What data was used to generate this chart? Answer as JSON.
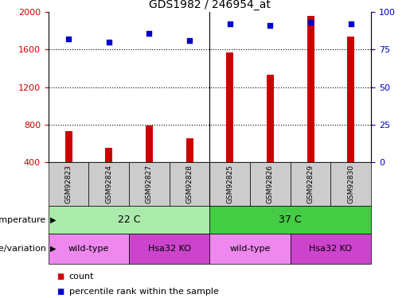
{
  "title": "GDS1982 / 246954_at",
  "samples": [
    "GSM92823",
    "GSM92824",
    "GSM92827",
    "GSM92828",
    "GSM92825",
    "GSM92826",
    "GSM92829",
    "GSM92830"
  ],
  "counts": [
    730,
    555,
    795,
    660,
    1570,
    1330,
    1960,
    1740
  ],
  "percentiles": [
    82,
    80,
    86,
    81,
    92,
    91,
    93,
    92
  ],
  "ylim_left": [
    400,
    2000
  ],
  "ylim_right": [
    0,
    100
  ],
  "yticks_left": [
    400,
    800,
    1200,
    1600,
    2000
  ],
  "yticks_right": [
    0,
    25,
    50,
    75,
    100
  ],
  "bar_color": "#cc0000",
  "dot_color": "#0000cc",
  "temp_row": [
    {
      "label": "22 C",
      "start": 0,
      "end": 4,
      "color": "#aaeaaa"
    },
    {
      "label": "37 C",
      "start": 4,
      "end": 8,
      "color": "#44cc44"
    }
  ],
  "geno_row": [
    {
      "label": "wild-type",
      "start": 0,
      "end": 2,
      "color": "#ee88ee"
    },
    {
      "label": "Hsa32 KO",
      "start": 2,
      "end": 4,
      "color": "#cc44cc"
    },
    {
      "label": "wild-type",
      "start": 4,
      "end": 6,
      "color": "#ee88ee"
    },
    {
      "label": "Hsa32 KO",
      "start": 6,
      "end": 8,
      "color": "#cc44cc"
    }
  ],
  "temp_label": "temperature",
  "geno_label": "genotype/variation",
  "legend_count": "count",
  "legend_pct": "percentile rank within the sample",
  "sample_box_color": "#cccccc",
  "bar_color_red": "#cc0000",
  "dot_color_blue": "#0000cc"
}
